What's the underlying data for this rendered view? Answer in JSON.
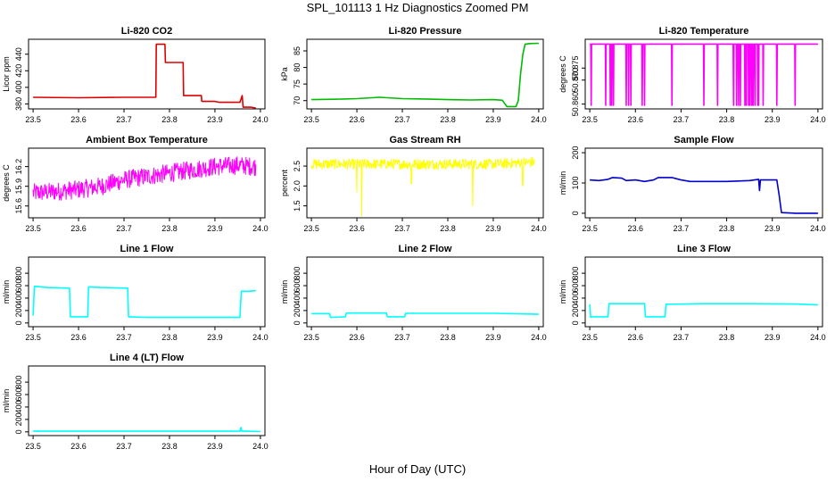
{
  "figure": {
    "title": "SPL_101113  1 Hz Diagnostics Zoomed PM",
    "xlabel": "Hour of Day (UTC)"
  },
  "chart_data": [
    {
      "type": "line",
      "title": "Li-820 CO2",
      "ylabel": "Licor ppm",
      "color": "#dd0000",
      "xlim": [
        23.49,
        24.01
      ],
      "ylim": [
        374,
        458
      ],
      "xticks": [
        23.5,
        23.6,
        23.7,
        23.8,
        23.9,
        24.0
      ],
      "xtick_labels": [
        "23.5",
        "23.6",
        "23.7",
        "23.8",
        "23.9",
        "24.0"
      ],
      "yticks": [
        380,
        400,
        420,
        440
      ],
      "ytick_labels": [
        "380",
        "400",
        "420",
        "440"
      ],
      "x": [
        23.5,
        23.6,
        23.7,
        23.75,
        23.77,
        23.771,
        23.79,
        23.791,
        23.8,
        23.82,
        23.83,
        23.831,
        23.86,
        23.87,
        23.871,
        23.9,
        23.91,
        23.93,
        23.955,
        23.96,
        23.962,
        23.97,
        23.98,
        23.99
      ],
      "y": [
        388,
        387.5,
        388,
        388,
        388,
        452,
        452,
        430,
        430,
        430,
        430,
        390,
        390,
        390,
        383,
        383,
        382,
        382,
        382,
        390,
        376,
        376,
        376,
        375
      ]
    },
    {
      "type": "line",
      "title": "Li-820 Pressure",
      "ylabel": "kPa",
      "color": "#00bb00",
      "xlim": [
        23.49,
        24.01
      ],
      "ylim": [
        67.5,
        88.5
      ],
      "xticks": [
        23.5,
        23.6,
        23.7,
        23.8,
        23.9,
        24.0
      ],
      "xtick_labels": [
        "23.5",
        "23.6",
        "23.7",
        "23.8",
        "23.9",
        "24.0"
      ],
      "yticks": [
        70,
        75,
        80,
        85
      ],
      "ytick_labels": [
        "70",
        "75",
        "80",
        "85"
      ],
      "x": [
        23.5,
        23.55,
        23.6,
        23.65,
        23.7,
        23.75,
        23.8,
        23.85,
        23.9,
        23.92,
        23.93,
        23.95,
        23.955,
        23.96,
        23.965,
        23.97,
        23.98,
        24.0
      ],
      "y": [
        70.3,
        70.4,
        70.6,
        71.0,
        70.6,
        70.5,
        70.3,
        70.2,
        70.3,
        70.1,
        68.2,
        68.2,
        70,
        78,
        84,
        87,
        87.2,
        87.3
      ]
    },
    {
      "type": "line",
      "title": "Li-820 Temperature",
      "ylabel": "degrees C",
      "color": "#ff00ff",
      "xlim": [
        23.49,
        24.01
      ],
      "ylim": [
        50.858,
        50.887
      ],
      "xticks": [
        23.5,
        23.6,
        23.7,
        23.8,
        23.9,
        24.0
      ],
      "xtick_labels": [
        "23.5",
        "23.6",
        "23.7",
        "23.8",
        "23.9",
        "24.0"
      ],
      "yticks": [
        50.86,
        50.87,
        50.875
      ],
      "ytick_labels": [
        "50.860",
        "50.870",
        "50.875"
      ],
      "baseline": 50.885,
      "drop_value": 50.8595,
      "drops_x": [
        23.503,
        23.535,
        23.545,
        23.548,
        23.552,
        23.58,
        23.585,
        23.59,
        23.615,
        23.62,
        23.68,
        23.75,
        23.78,
        23.815,
        23.822,
        23.826,
        23.83,
        23.84,
        23.843,
        23.848,
        23.851,
        23.855,
        23.858,
        23.862,
        23.868,
        23.87,
        23.88,
        23.91,
        23.95
      ]
    },
    {
      "type": "line",
      "title": "Ambient Box Temperature",
      "ylabel": "degrees C",
      "color": "#ff00ff",
      "xlim": [
        23.49,
        24.01
      ],
      "ylim": [
        15.42,
        16.48
      ],
      "xticks": [
        23.5,
        23.6,
        23.7,
        23.8,
        23.9,
        24.0
      ],
      "xtick_labels": [
        "23.5",
        "23.6",
        "23.7",
        "23.8",
        "23.9",
        "24.0"
      ],
      "yticks": [
        15.6,
        15.9,
        16.2
      ],
      "ytick_labels": [
        "15.6",
        "15.9",
        "16.2"
      ],
      "noise": 0.14,
      "x": [
        23.5,
        23.55,
        23.6,
        23.65,
        23.7,
        23.75,
        23.8,
        23.85,
        23.9,
        23.95,
        23.99
      ],
      "y": [
        15.8,
        15.82,
        15.85,
        15.9,
        16.0,
        16.05,
        16.1,
        16.15,
        16.2,
        16.22,
        16.2
      ]
    },
    {
      "type": "line",
      "title": "Gas Stream RH",
      "ylabel": "percent",
      "color": "#ffff00",
      "xlim": [
        23.49,
        24.01
      ],
      "ylim": [
        1.2,
        2.95
      ],
      "xticks": [
        23.5,
        23.6,
        23.7,
        23.8,
        23.9,
        24.0
      ],
      "xtick_labels": [
        "23.5",
        "23.6",
        "23.7",
        "23.8",
        "23.9",
        "24.0"
      ],
      "yticks": [
        1.5,
        2.0,
        2.5
      ],
      "ytick_labels": [
        "1.5",
        "2.0",
        "2.5"
      ],
      "noise": 0.13,
      "spikes": [
        [
          23.611,
          1.25
        ],
        [
          23.6,
          1.85
        ],
        [
          23.72,
          2.05
        ],
        [
          23.855,
          1.5
        ],
        [
          23.965,
          2.0
        ]
      ],
      "x": [
        23.5,
        23.6,
        23.7,
        23.8,
        23.9,
        23.95,
        23.99
      ],
      "y": [
        2.55,
        2.55,
        2.55,
        2.55,
        2.55,
        2.58,
        2.6
      ]
    },
    {
      "type": "line",
      "title": "Sample Flow",
      "ylabel": "ml/min",
      "color": "#0000cc",
      "xlim": [
        23.49,
        24.01
      ],
      "ylim": [
        -15,
        215
      ],
      "xticks": [
        23.5,
        23.6,
        23.7,
        23.8,
        23.9,
        24.0
      ],
      "xtick_labels": [
        "23.5",
        "23.6",
        "23.7",
        "23.8",
        "23.9",
        "24.0"
      ],
      "yticks": [
        0,
        100,
        200
      ],
      "ytick_labels": [
        "0",
        "100",
        "200"
      ],
      "x": [
        23.5,
        23.52,
        23.54,
        23.55,
        23.57,
        23.58,
        23.6,
        23.62,
        23.64,
        23.65,
        23.68,
        23.7,
        23.72,
        23.75,
        23.8,
        23.85,
        23.87,
        23.872,
        23.874,
        23.876,
        23.9,
        23.91,
        23.915,
        23.92,
        23.95,
        24.0
      ],
      "y": [
        110,
        108,
        112,
        118,
        116,
        108,
        110,
        105,
        110,
        118,
        118,
        110,
        105,
        105,
        105,
        108,
        112,
        75,
        110,
        110,
        110,
        110,
        60,
        2,
        0,
        0
      ]
    },
    {
      "type": "line",
      "title": "Line 1 Flow",
      "ylabel": "ml/min",
      "color": "#00ffff",
      "xlim": [
        23.49,
        24.01
      ],
      "ylim": [
        -60,
        1060
      ],
      "xticks": [
        23.5,
        23.6,
        23.7,
        23.8,
        23.9,
        24.0
      ],
      "xtick_labels": [
        "23.5",
        "23.6",
        "23.7",
        "23.8",
        "23.9",
        "24.0"
      ],
      "yticks": [
        0,
        200,
        400,
        600,
        800
      ],
      "ytick_labels": [
        "0",
        "200",
        "400",
        "600",
        "800"
      ],
      "x": [
        23.5,
        23.503,
        23.53,
        23.58,
        23.582,
        23.62,
        23.622,
        23.65,
        23.708,
        23.71,
        23.75,
        23.8,
        23.85,
        23.9,
        23.955,
        23.958,
        23.975,
        23.99
      ],
      "y": [
        120,
        590,
        570,
        560,
        100,
        100,
        580,
        570,
        560,
        100,
        90,
        90,
        90,
        90,
        90,
        510,
        510,
        520
      ]
    },
    {
      "type": "line",
      "title": "Line 2 Flow",
      "ylabel": "ml/min",
      "color": "#00ffff",
      "xlim": [
        23.49,
        24.01
      ],
      "ylim": [
        -60,
        1060
      ],
      "xticks": [
        23.5,
        23.6,
        23.7,
        23.8,
        23.9,
        24.0
      ],
      "xtick_labels": [
        "23.5",
        "23.6",
        "23.7",
        "23.8",
        "23.9",
        "24.0"
      ],
      "yticks": [
        0,
        200,
        400,
        600,
        800
      ],
      "ytick_labels": [
        "0",
        "200",
        "400",
        "600",
        "800"
      ],
      "x": [
        23.5,
        23.54,
        23.542,
        23.575,
        23.577,
        23.665,
        23.667,
        23.705,
        23.707,
        23.8,
        23.9,
        24.0
      ],
      "y": [
        150,
        150,
        90,
        100,
        160,
        160,
        100,
        100,
        155,
        155,
        155,
        140
      ]
    },
    {
      "type": "line",
      "title": "Line 3 Flow",
      "ylabel": "ml/min",
      "color": "#00ffff",
      "xlim": [
        23.49,
        24.01
      ],
      "ylim": [
        -60,
        1060
      ],
      "xticks": [
        23.5,
        23.6,
        23.7,
        23.8,
        23.9,
        24.0
      ],
      "xtick_labels": [
        "23.5",
        "23.6",
        "23.7",
        "23.8",
        "23.9",
        "24.0"
      ],
      "yticks": [
        0,
        200,
        400,
        600,
        800
      ],
      "ytick_labels": [
        "0",
        "200",
        "400",
        "600",
        "800"
      ],
      "x": [
        23.5,
        23.502,
        23.504,
        23.54,
        23.542,
        23.62,
        23.622,
        23.665,
        23.667,
        23.75,
        23.85,
        23.95,
        24.0
      ],
      "y": [
        300,
        90,
        100,
        100,
        310,
        310,
        100,
        100,
        300,
        310,
        310,
        305,
        290
      ]
    },
    {
      "type": "line",
      "title": "Line 4 (LT) Flow",
      "ylabel": "ml/min",
      "color": "#00ffff",
      "xlim": [
        23.49,
        24.01
      ],
      "ylim": [
        -60,
        1060
      ],
      "xticks": [
        23.5,
        23.6,
        23.7,
        23.8,
        23.9,
        24.0
      ],
      "xtick_labels": [
        "23.5",
        "23.6",
        "23.7",
        "23.8",
        "23.9",
        "24.0"
      ],
      "yticks": [
        0,
        200,
        400,
        600,
        800
      ],
      "ytick_labels": [
        "0",
        "200",
        "400",
        "600",
        "800"
      ],
      "x": [
        23.5,
        23.6,
        23.7,
        23.8,
        23.9,
        23.955,
        23.957,
        23.959,
        23.97,
        24.0
      ],
      "y": [
        10,
        10,
        10,
        10,
        10,
        10,
        70,
        10,
        10,
        5
      ]
    }
  ]
}
